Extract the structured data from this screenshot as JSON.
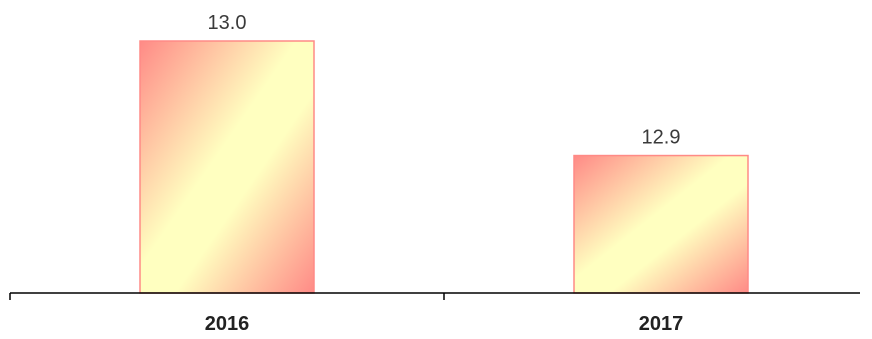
{
  "chart_data": {
    "type": "bar",
    "categories": [
      "2016",
      "2017"
    ],
    "values": [
      13.0,
      12.9
    ],
    "value_labels": [
      "13.0",
      "12.9"
    ],
    "title": "",
    "xlabel": "",
    "ylabel": "",
    "ylim": [
      12.78,
      13.0
    ],
    "grid": false,
    "legend": "none",
    "colors": {
      "bar_gradient_edge": "#ff8a86",
      "bar_gradient_center": "#ffffc0",
      "bar_border": "#ff8a86",
      "axis": "#000000"
    }
  }
}
